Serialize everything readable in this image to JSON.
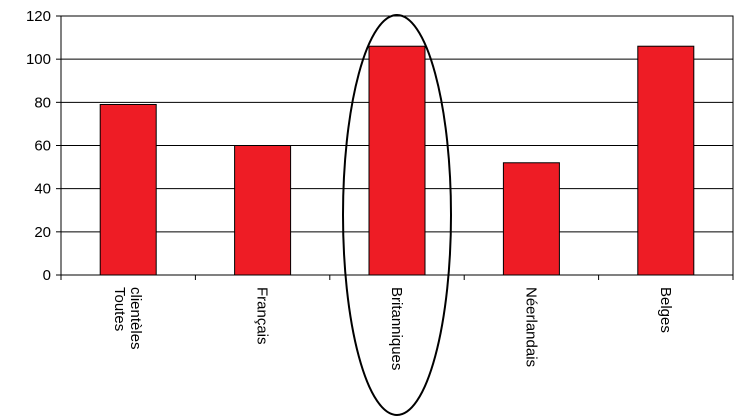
{
  "chart_data": {
    "type": "bar",
    "categories": [
      "Toutes clientèles",
      "Français",
      "Britanniques",
      "Néerlandais",
      "Belges"
    ],
    "category_lines": [
      [
        "Toutes",
        "clientèles"
      ],
      [
        "Français"
      ],
      [
        "Britanniques"
      ],
      [
        "Néerlandais"
      ],
      [
        "Belges"
      ]
    ],
    "values": [
      79,
      60,
      106,
      52,
      106
    ],
    "ylim": [
      0,
      120
    ],
    "yticks": [
      "0",
      "20",
      "40",
      "60",
      "80",
      "100",
      "120"
    ],
    "grid": true,
    "legend": "none",
    "bar_color": "#ee1c25",
    "highlighted_category": "Britanniques",
    "title": "",
    "xlabel": "",
    "ylabel": ""
  }
}
